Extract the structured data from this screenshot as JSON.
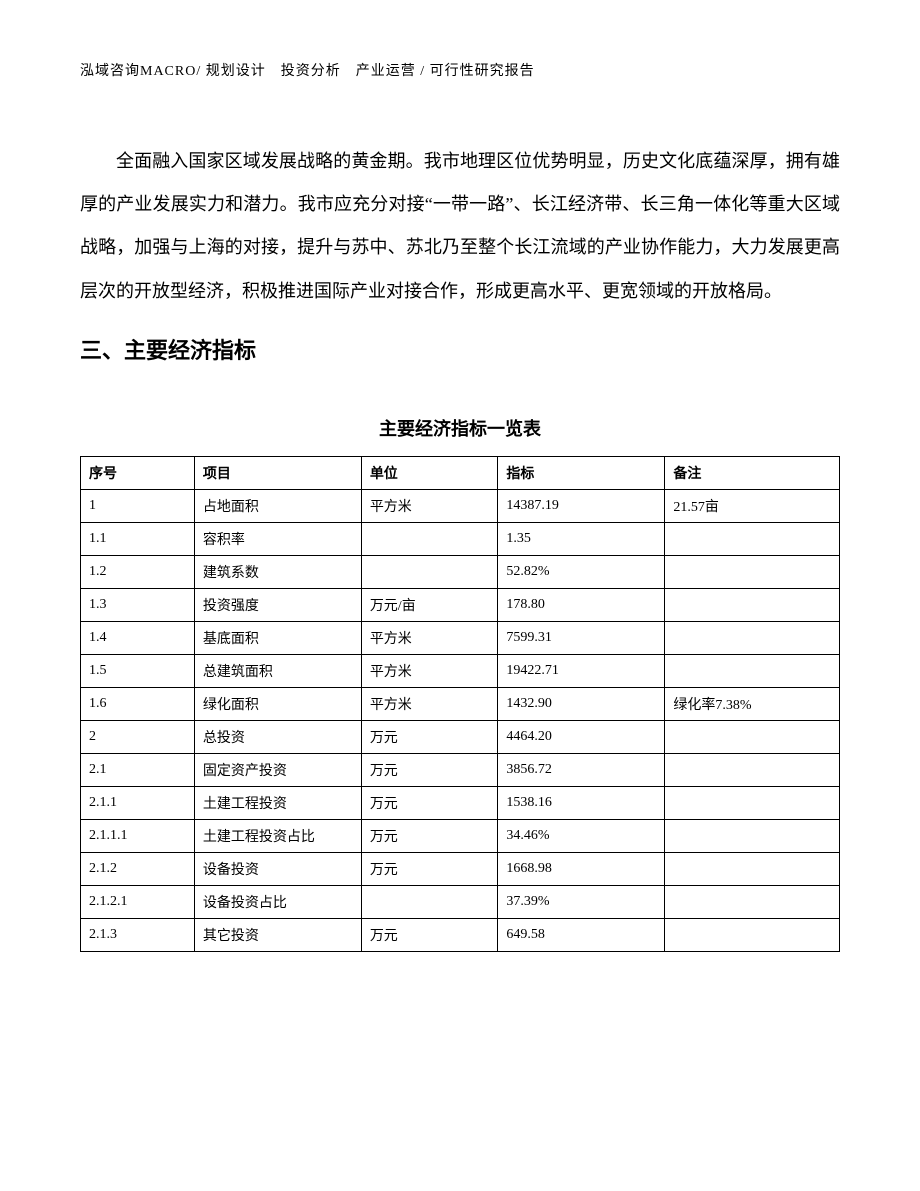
{
  "header": {
    "text": "泓域咨询MACRO/ 规划设计　投资分析　产业运营 / 可行性研究报告"
  },
  "paragraph": {
    "text": "全面融入国家区域发展战略的黄金期。我市地理区位优势明显，历史文化底蕴深厚，拥有雄厚的产业发展实力和潜力。我市应充分对接“一带一路”、长江经济带、长三角一体化等重大区域战略，加强与上海的对接，提升与苏中、苏北乃至整个长江流域的产业协作能力，大力发展更高层次的开放型经济，积极推进国际产业对接合作，形成更高水平、更宽领域的开放格局。"
  },
  "section_heading": {
    "text": "三、主要经济指标"
  },
  "table": {
    "title": "主要经济指标一览表",
    "columns": [
      "序号",
      "项目",
      "单位",
      "指标",
      "备注"
    ],
    "rows": [
      [
        "1",
        "占地面积",
        "平方米",
        "14387.19",
        "21.57亩"
      ],
      [
        "1.1",
        "容积率",
        "",
        "1.35",
        ""
      ],
      [
        "1.2",
        "建筑系数",
        "",
        "52.82%",
        ""
      ],
      [
        "1.3",
        "投资强度",
        "万元/亩",
        "178.80",
        ""
      ],
      [
        "1.4",
        "基底面积",
        "平方米",
        "7599.31",
        ""
      ],
      [
        "1.5",
        "总建筑面积",
        "平方米",
        "19422.71",
        ""
      ],
      [
        "1.6",
        "绿化面积",
        "平方米",
        "1432.90",
        "绿化率7.38%"
      ],
      [
        "2",
        "总投资",
        "万元",
        "4464.20",
        ""
      ],
      [
        "2.1",
        "固定资产投资",
        "万元",
        "3856.72",
        ""
      ],
      [
        "2.1.1",
        "土建工程投资",
        "万元",
        "1538.16",
        ""
      ],
      [
        "2.1.1.1",
        "土建工程投资占比",
        "万元",
        "34.46%",
        ""
      ],
      [
        "2.1.2",
        "设备投资",
        "万元",
        "1668.98",
        ""
      ],
      [
        "2.1.2.1",
        "设备投资占比",
        "",
        "37.39%",
        ""
      ],
      [
        "2.1.3",
        "其它投资",
        "万元",
        "649.58",
        ""
      ]
    ]
  }
}
